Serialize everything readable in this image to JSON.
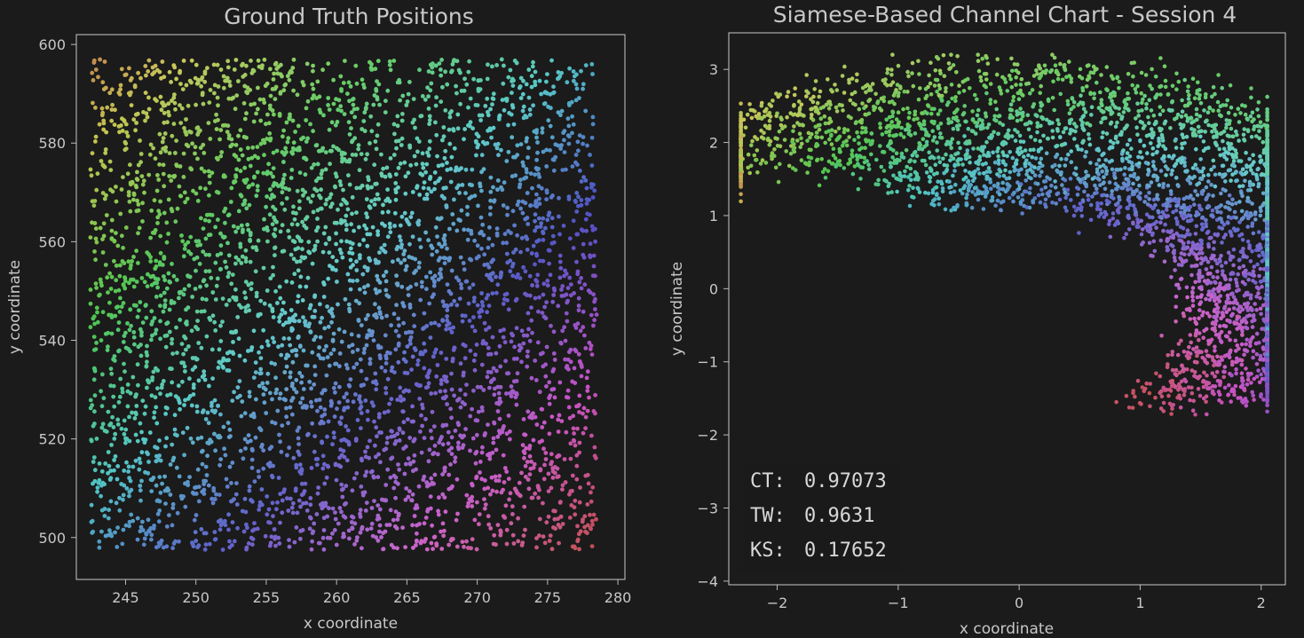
{
  "chart_data": [
    {
      "type": "scatter",
      "title": "Ground Truth Positions",
      "xlabel": "x coordinate",
      "ylabel": "y coordinate",
      "xlim": [
        241.5,
        280.5
      ],
      "ylim": [
        491.5,
        602
      ],
      "xticks": [
        245,
        250,
        255,
        260,
        265,
        270,
        275,
        280
      ],
      "yticks": [
        500,
        520,
        540,
        560,
        580,
        600
      ],
      "x_tick_labels": [
        "245",
        "250",
        "255",
        "260",
        "265",
        "270",
        "275",
        "280"
      ],
      "y_tick_labels": [
        "500",
        "520",
        "540",
        "560",
        "580",
        "600"
      ],
      "grid": false,
      "point_count": 4000,
      "data_extent": {
        "x": [
          242.5,
          278.5
        ],
        "y": [
          497.5,
          597
        ]
      },
      "color_encoding": "position-based gradient",
      "corner_colors": {
        "bottom_left": "#c9a046",
        "bottom_right": "#3fc33f",
        "top_left": "#a3306e",
        "top_right": "#4aa2b3"
      },
      "axis_color": "#bdbdbd"
    },
    {
      "type": "scatter",
      "title": "Siamese-Based Channel Chart - Session 4",
      "xlabel": "x coordinate",
      "ylabel": "y coordinate",
      "xlim": [
        -2.4,
        2.2
      ],
      "ylim": [
        -4.05,
        3.5
      ],
      "xticks": [
        -2,
        -1,
        0,
        1,
        2
      ],
      "yticks": [
        -4,
        -3,
        -2,
        -1,
        0,
        1,
        2,
        3
      ],
      "x_tick_labels": [
        "−2",
        "−1",
        "0",
        "1",
        "2"
      ],
      "y_tick_labels": [
        "−4",
        "−3",
        "−2",
        "−1",
        "0",
        "1",
        "2",
        "3"
      ],
      "grid": false,
      "point_count": 4000,
      "color_encoding": "ground-truth position gradient",
      "metrics": [
        {
          "label": "CT:",
          "value": "0.97073"
        },
        {
          "label": "TW:",
          "value": "0.9631"
        },
        {
          "label": "KS:",
          "value": "0.17652"
        }
      ],
      "axis_color": "#bdbdbd"
    }
  ]
}
